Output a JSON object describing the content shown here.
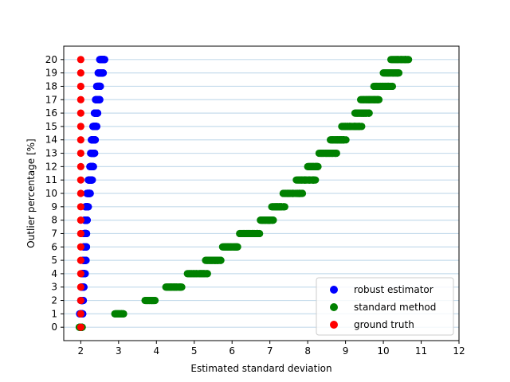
{
  "chart_data": {
    "type": "scatter",
    "title": "",
    "xlabel": "Estimated standard deviation",
    "ylabel": "Outlier percentage [%]",
    "xlim": [
      1.55,
      12
    ],
    "ylim": [
      -1,
      21
    ],
    "xticks": [
      "2",
      "3",
      "4",
      "5",
      "6",
      "7",
      "8",
      "9",
      "10",
      "11",
      "12"
    ],
    "yticks": [
      "0",
      "1",
      "2",
      "3",
      "4",
      "5",
      "6",
      "7",
      "8",
      "9",
      "10",
      "11",
      "12",
      "13",
      "14",
      "15",
      "16",
      "17",
      "18",
      "19",
      "20"
    ],
    "grid": "horizontal lines at each outlier percentage",
    "grid_color": "#c6dcec",
    "legend_position": "lower right",
    "series": [
      {
        "name": "robust estimator",
        "color": "#0000ff",
        "points": [
          {
            "y": 0,
            "x_min": 1.97,
            "x_max": 2.03
          },
          {
            "y": 1,
            "x_min": 1.97,
            "x_max": 2.06
          },
          {
            "y": 2,
            "x_min": 2.0,
            "x_max": 2.07
          },
          {
            "y": 3,
            "x_min": 2.01,
            "x_max": 2.09
          },
          {
            "y": 4,
            "x_min": 2.03,
            "x_max": 2.12
          },
          {
            "y": 5,
            "x_min": 2.06,
            "x_max": 2.14
          },
          {
            "y": 6,
            "x_min": 2.07,
            "x_max": 2.16
          },
          {
            "y": 7,
            "x_min": 2.08,
            "x_max": 2.16
          },
          {
            "y": 8,
            "x_min": 2.1,
            "x_max": 2.18
          },
          {
            "y": 9,
            "x_min": 2.12,
            "x_max": 2.2
          },
          {
            "y": 10,
            "x_min": 2.16,
            "x_max": 2.26
          },
          {
            "y": 11,
            "x_min": 2.2,
            "x_max": 2.31
          },
          {
            "y": 12,
            "x_min": 2.24,
            "x_max": 2.34
          },
          {
            "y": 13,
            "x_min": 2.26,
            "x_max": 2.38
          },
          {
            "y": 14,
            "x_min": 2.28,
            "x_max": 2.4
          },
          {
            "y": 15,
            "x_min": 2.32,
            "x_max": 2.43
          },
          {
            "y": 16,
            "x_min": 2.36,
            "x_max": 2.46
          },
          {
            "y": 17,
            "x_min": 2.39,
            "x_max": 2.51
          },
          {
            "y": 18,
            "x_min": 2.42,
            "x_max": 2.53
          },
          {
            "y": 19,
            "x_min": 2.46,
            "x_max": 2.6
          },
          {
            "y": 20,
            "x_min": 2.5,
            "x_max": 2.64
          }
        ]
      },
      {
        "name": "standard method",
        "color": "#008000",
        "points": [
          {
            "y": 0,
            "x_min": 1.96,
            "x_max": 2.04
          },
          {
            "y": 1,
            "x_min": 2.9,
            "x_max": 3.15
          },
          {
            "y": 2,
            "x_min": 3.7,
            "x_max": 3.98
          },
          {
            "y": 3,
            "x_min": 4.25,
            "x_max": 4.68
          },
          {
            "y": 4,
            "x_min": 4.82,
            "x_max": 5.38
          },
          {
            "y": 5,
            "x_min": 5.3,
            "x_max": 5.72
          },
          {
            "y": 6,
            "x_min": 5.75,
            "x_max": 6.2
          },
          {
            "y": 7,
            "x_min": 6.2,
            "x_max": 6.75
          },
          {
            "y": 8,
            "x_min": 6.75,
            "x_max": 7.1
          },
          {
            "y": 9,
            "x_min": 7.05,
            "x_max": 7.4
          },
          {
            "y": 10,
            "x_min": 7.35,
            "x_max": 7.9
          },
          {
            "y": 11,
            "x_min": 7.7,
            "x_max": 8.25
          },
          {
            "y": 12,
            "x_min": 8.0,
            "x_max": 8.3
          },
          {
            "y": 13,
            "x_min": 8.3,
            "x_max": 8.8
          },
          {
            "y": 14,
            "x_min": 8.6,
            "x_max": 9.02
          },
          {
            "y": 15,
            "x_min": 8.9,
            "x_max": 9.45
          },
          {
            "y": 16,
            "x_min": 9.25,
            "x_max": 9.65
          },
          {
            "y": 17,
            "x_min": 9.4,
            "x_max": 9.95
          },
          {
            "y": 18,
            "x_min": 9.75,
            "x_max": 10.25
          },
          {
            "y": 19,
            "x_min": 10.0,
            "x_max": 10.45
          },
          {
            "y": 20,
            "x_min": 10.2,
            "x_max": 10.7
          }
        ]
      },
      {
        "name": "ground truth",
        "color": "#ff0000",
        "points": [
          {
            "y": 0,
            "x": 2
          },
          {
            "y": 1,
            "x": 2
          },
          {
            "y": 2,
            "x": 2
          },
          {
            "y": 3,
            "x": 2
          },
          {
            "y": 4,
            "x": 2
          },
          {
            "y": 5,
            "x": 2
          },
          {
            "y": 6,
            "x": 2
          },
          {
            "y": 7,
            "x": 2
          },
          {
            "y": 8,
            "x": 2
          },
          {
            "y": 9,
            "x": 2
          },
          {
            "y": 10,
            "x": 2
          },
          {
            "y": 11,
            "x": 2
          },
          {
            "y": 12,
            "x": 2
          },
          {
            "y": 13,
            "x": 2
          },
          {
            "y": 14,
            "x": 2
          },
          {
            "y": 15,
            "x": 2
          },
          {
            "y": 16,
            "x": 2
          },
          {
            "y": 17,
            "x": 2
          },
          {
            "y": 18,
            "x": 2
          },
          {
            "y": 19,
            "x": 2
          },
          {
            "y": 20,
            "x": 2
          }
        ]
      }
    ],
    "legend": [
      {
        "label": "robust estimator",
        "color": "#0000ff"
      },
      {
        "label": "standard method",
        "color": "#008000"
      },
      {
        "label": "ground truth",
        "color": "#ff0000"
      }
    ]
  }
}
